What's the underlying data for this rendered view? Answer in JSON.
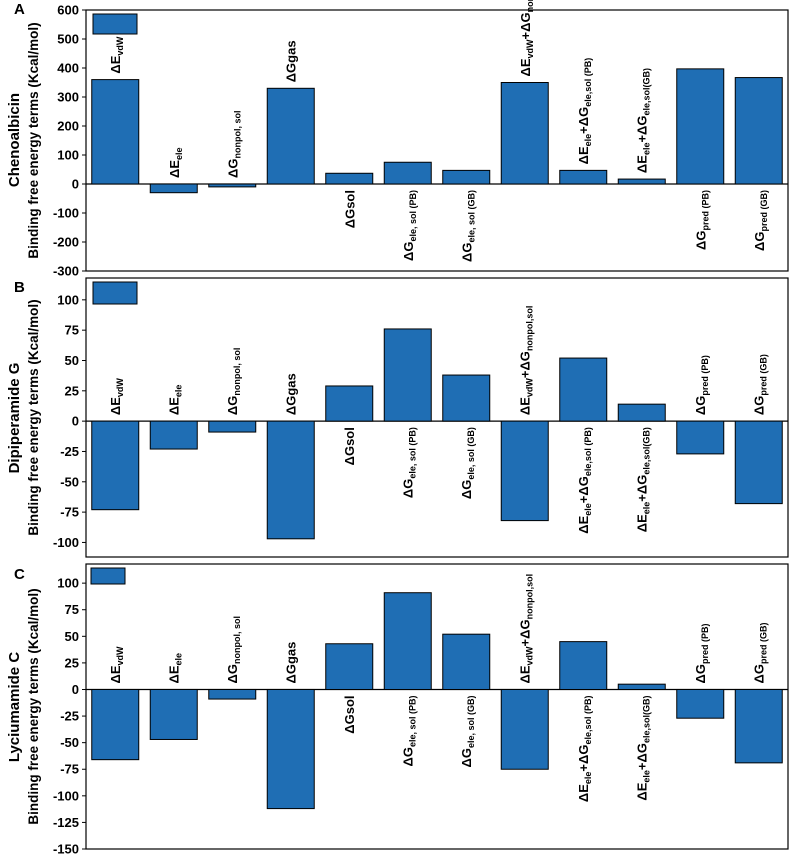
{
  "chart_data": [
    {
      "panel": "A",
      "type": "bar",
      "compound": "Chenoalbicin",
      "ylabel": "Binding free energy terms (Kcal/mol)",
      "ylim": [
        -300,
        600
      ],
      "yticks": [
        -300,
        -200,
        -100,
        0,
        100,
        200,
        300,
        400,
        500,
        600
      ],
      "categories": [
        "ΔE_vdW",
        "ΔE_ele",
        "ΔG_nonpol, sol",
        "ΔGgas",
        "ΔGsol",
        "ΔG_ele, sol (PB)",
        "ΔG_ele, sol (GB)",
        "ΔE_vdW+ΔG_nonpol,sol",
        "ΔE_ele+ΔG_ele,sol (PB)",
        "ΔE_ele+ΔG_ele,sol(GB)",
        "ΔG_pred (PB)",
        "ΔG_pred (GB)"
      ],
      "values": [
        360,
        -30,
        -10,
        330,
        37,
        75,
        47,
        350,
        47,
        17,
        397,
        367
      ],
      "labels": [
        [
          {
            "t": "ΔE"
          },
          {
            "t": "vdW",
            "s": 1
          }
        ],
        [
          {
            "t": "ΔE"
          },
          {
            "t": "ele",
            "s": 1
          }
        ],
        [
          {
            "t": "ΔG"
          },
          {
            "t": "nonpol, sol",
            "s": 1
          }
        ],
        [
          {
            "t": "ΔGgas"
          }
        ],
        [
          {
            "t": "ΔGsol"
          }
        ],
        [
          {
            "t": "ΔG"
          },
          {
            "t": "ele, sol (PB)",
            "s": 1
          }
        ],
        [
          {
            "t": "ΔG"
          },
          {
            "t": "ele, sol (GB)",
            "s": 1
          }
        ],
        [
          {
            "t": "ΔE"
          },
          {
            "t": "vdW",
            "s": 1
          },
          {
            "t": "+ΔG"
          },
          {
            "t": "nonpol,sol",
            "s": 1
          }
        ],
        [
          {
            "t": "ΔE"
          },
          {
            "t": "ele",
            "s": 1
          },
          {
            "t": "+ΔG"
          },
          {
            "t": "ele,sol (PB)",
            "s": 1
          }
        ],
        [
          {
            "t": "ΔE"
          },
          {
            "t": "ele",
            "s": 1
          },
          {
            "t": "+ΔG"
          },
          {
            "t": "ele,sol(GB)",
            "s": 1
          }
        ],
        [
          {
            "t": "ΔG"
          },
          {
            "t": "pred (PB)",
            "s": 1
          }
        ],
        [
          {
            "t": "ΔG"
          },
          {
            "t": "pred (GB)",
            "s": 1
          }
        ]
      ],
      "label_side": [
        "above",
        "above",
        "above",
        "above",
        "below",
        "below",
        "below",
        "above",
        "above",
        "above",
        "below",
        "below"
      ]
    },
    {
      "panel": "B",
      "type": "bar",
      "compound": "Dipiperamide G",
      "ylabel": "Binding free energy terms (Kcal/mol)",
      "ylim": [
        -112,
        118
      ],
      "yticks": [
        -100,
        -75,
        -50,
        -25,
        0,
        25,
        50,
        75,
        100
      ],
      "categories": [
        "ΔE_vdW",
        "ΔE_ele",
        "ΔG_nonpol, sol",
        "ΔGgas",
        "ΔGsol",
        "ΔG_ele, sol (PB)",
        "ΔG_ele, sol (GB)",
        "ΔE_vdW+ΔG_nonpol,sol",
        "ΔE_ele+ΔG_ele,sol (PB)",
        "ΔE_ele+ΔG_ele,sol(GB)",
        "ΔG_pred (PB)",
        "ΔG_pred (GB)"
      ],
      "values": [
        -73,
        -23,
        -9,
        -97,
        29,
        76,
        38,
        -82,
        52,
        14,
        -27,
        -68
      ],
      "labels": [
        [
          {
            "t": "ΔE"
          },
          {
            "t": "vdW",
            "s": 1
          }
        ],
        [
          {
            "t": "ΔE"
          },
          {
            "t": "ele",
            "s": 1
          }
        ],
        [
          {
            "t": "ΔG"
          },
          {
            "t": "nonpol, sol",
            "s": 1
          }
        ],
        [
          {
            "t": "ΔGgas"
          }
        ],
        [
          {
            "t": "ΔGsol"
          }
        ],
        [
          {
            "t": "ΔG"
          },
          {
            "t": "ele, sol (PB)",
            "s": 1
          }
        ],
        [
          {
            "t": "ΔG"
          },
          {
            "t": "ele, sol (GB)",
            "s": 1
          }
        ],
        [
          {
            "t": "ΔE"
          },
          {
            "t": "vdW",
            "s": 1
          },
          {
            "t": "+ΔG"
          },
          {
            "t": "nonpol,sol",
            "s": 1
          }
        ],
        [
          {
            "t": "ΔE"
          },
          {
            "t": "ele",
            "s": 1
          },
          {
            "t": "+ΔG"
          },
          {
            "t": "ele,sol (PB)",
            "s": 1
          }
        ],
        [
          {
            "t": "ΔE"
          },
          {
            "t": "ele",
            "s": 1
          },
          {
            "t": "+ΔG"
          },
          {
            "t": "ele,sol(GB)",
            "s": 1
          }
        ],
        [
          {
            "t": "ΔG"
          },
          {
            "t": "pred (PB)",
            "s": 1
          }
        ],
        [
          {
            "t": "ΔG"
          },
          {
            "t": "pred (GB)",
            "s": 1
          }
        ]
      ],
      "label_side": [
        "above",
        "above",
        "above",
        "above",
        "below",
        "below",
        "below",
        "above",
        "below",
        "below",
        "above",
        "above"
      ]
    },
    {
      "panel": "C",
      "type": "bar",
      "compound": "Lyciumamide C",
      "ylabel": "Binding free energy terms (Kcal/mol)",
      "ylim": [
        -150,
        118
      ],
      "yticks": [
        -150,
        -125,
        -100,
        -75,
        -50,
        -25,
        0,
        25,
        50,
        75,
        100
      ],
      "categories": [
        "ΔE_vdW",
        "ΔE_ele",
        "ΔG_nonpol, sol",
        "ΔGgas",
        "ΔGsol",
        "ΔG_ele, sol (PB)",
        "ΔG_ele, sol (GB)",
        "ΔE_vdW+ΔG_nonpol,sol",
        "ΔE_ele+ΔG_ele,sol (PB)",
        "ΔE_ele+ΔG_ele,sol(GB)",
        "ΔG_pred (PB)",
        "ΔG_pred (GB)"
      ],
      "values": [
        -66,
        -47,
        -9,
        -112,
        43,
        91,
        52,
        -75,
        45,
        5,
        -27,
        -69
      ],
      "labels": [
        [
          {
            "t": "ΔE"
          },
          {
            "t": "vdW",
            "s": 1
          }
        ],
        [
          {
            "t": "ΔE"
          },
          {
            "t": "ele",
            "s": 1
          }
        ],
        [
          {
            "t": "ΔG"
          },
          {
            "t": "nonpol, sol",
            "s": 1
          }
        ],
        [
          {
            "t": "ΔGgas"
          }
        ],
        [
          {
            "t": "ΔGsol"
          }
        ],
        [
          {
            "t": "ΔG"
          },
          {
            "t": "ele, sol (PB)",
            "s": 1
          }
        ],
        [
          {
            "t": "ΔG"
          },
          {
            "t": "ele, sol (GB)",
            "s": 1
          }
        ],
        [
          {
            "t": "ΔE"
          },
          {
            "t": "vdW",
            "s": 1
          },
          {
            "t": "+ΔG"
          },
          {
            "t": "nonpol,sol",
            "s": 1
          }
        ],
        [
          {
            "t": "ΔE"
          },
          {
            "t": "ele",
            "s": 1
          },
          {
            "t": "+ΔG"
          },
          {
            "t": "ele,sol (PB)",
            "s": 1
          }
        ],
        [
          {
            "t": "ΔE"
          },
          {
            "t": "ele",
            "s": 1
          },
          {
            "t": "+ΔG"
          },
          {
            "t": "ele,sol(GB)",
            "s": 1
          }
        ],
        [
          {
            "t": "ΔG"
          },
          {
            "t": "pred (PB)",
            "s": 1
          }
        ],
        [
          {
            "t": "ΔG"
          },
          {
            "t": "pred (GB)",
            "s": 1
          }
        ]
      ],
      "label_side": [
        "above",
        "above",
        "above",
        "above",
        "below",
        "below",
        "below",
        "above",
        "below",
        "below",
        "above",
        "above"
      ]
    }
  ],
  "colors": {
    "bar_fill": "#1F6EB4",
    "bar_stroke": "#000000",
    "axis": "#000000"
  }
}
